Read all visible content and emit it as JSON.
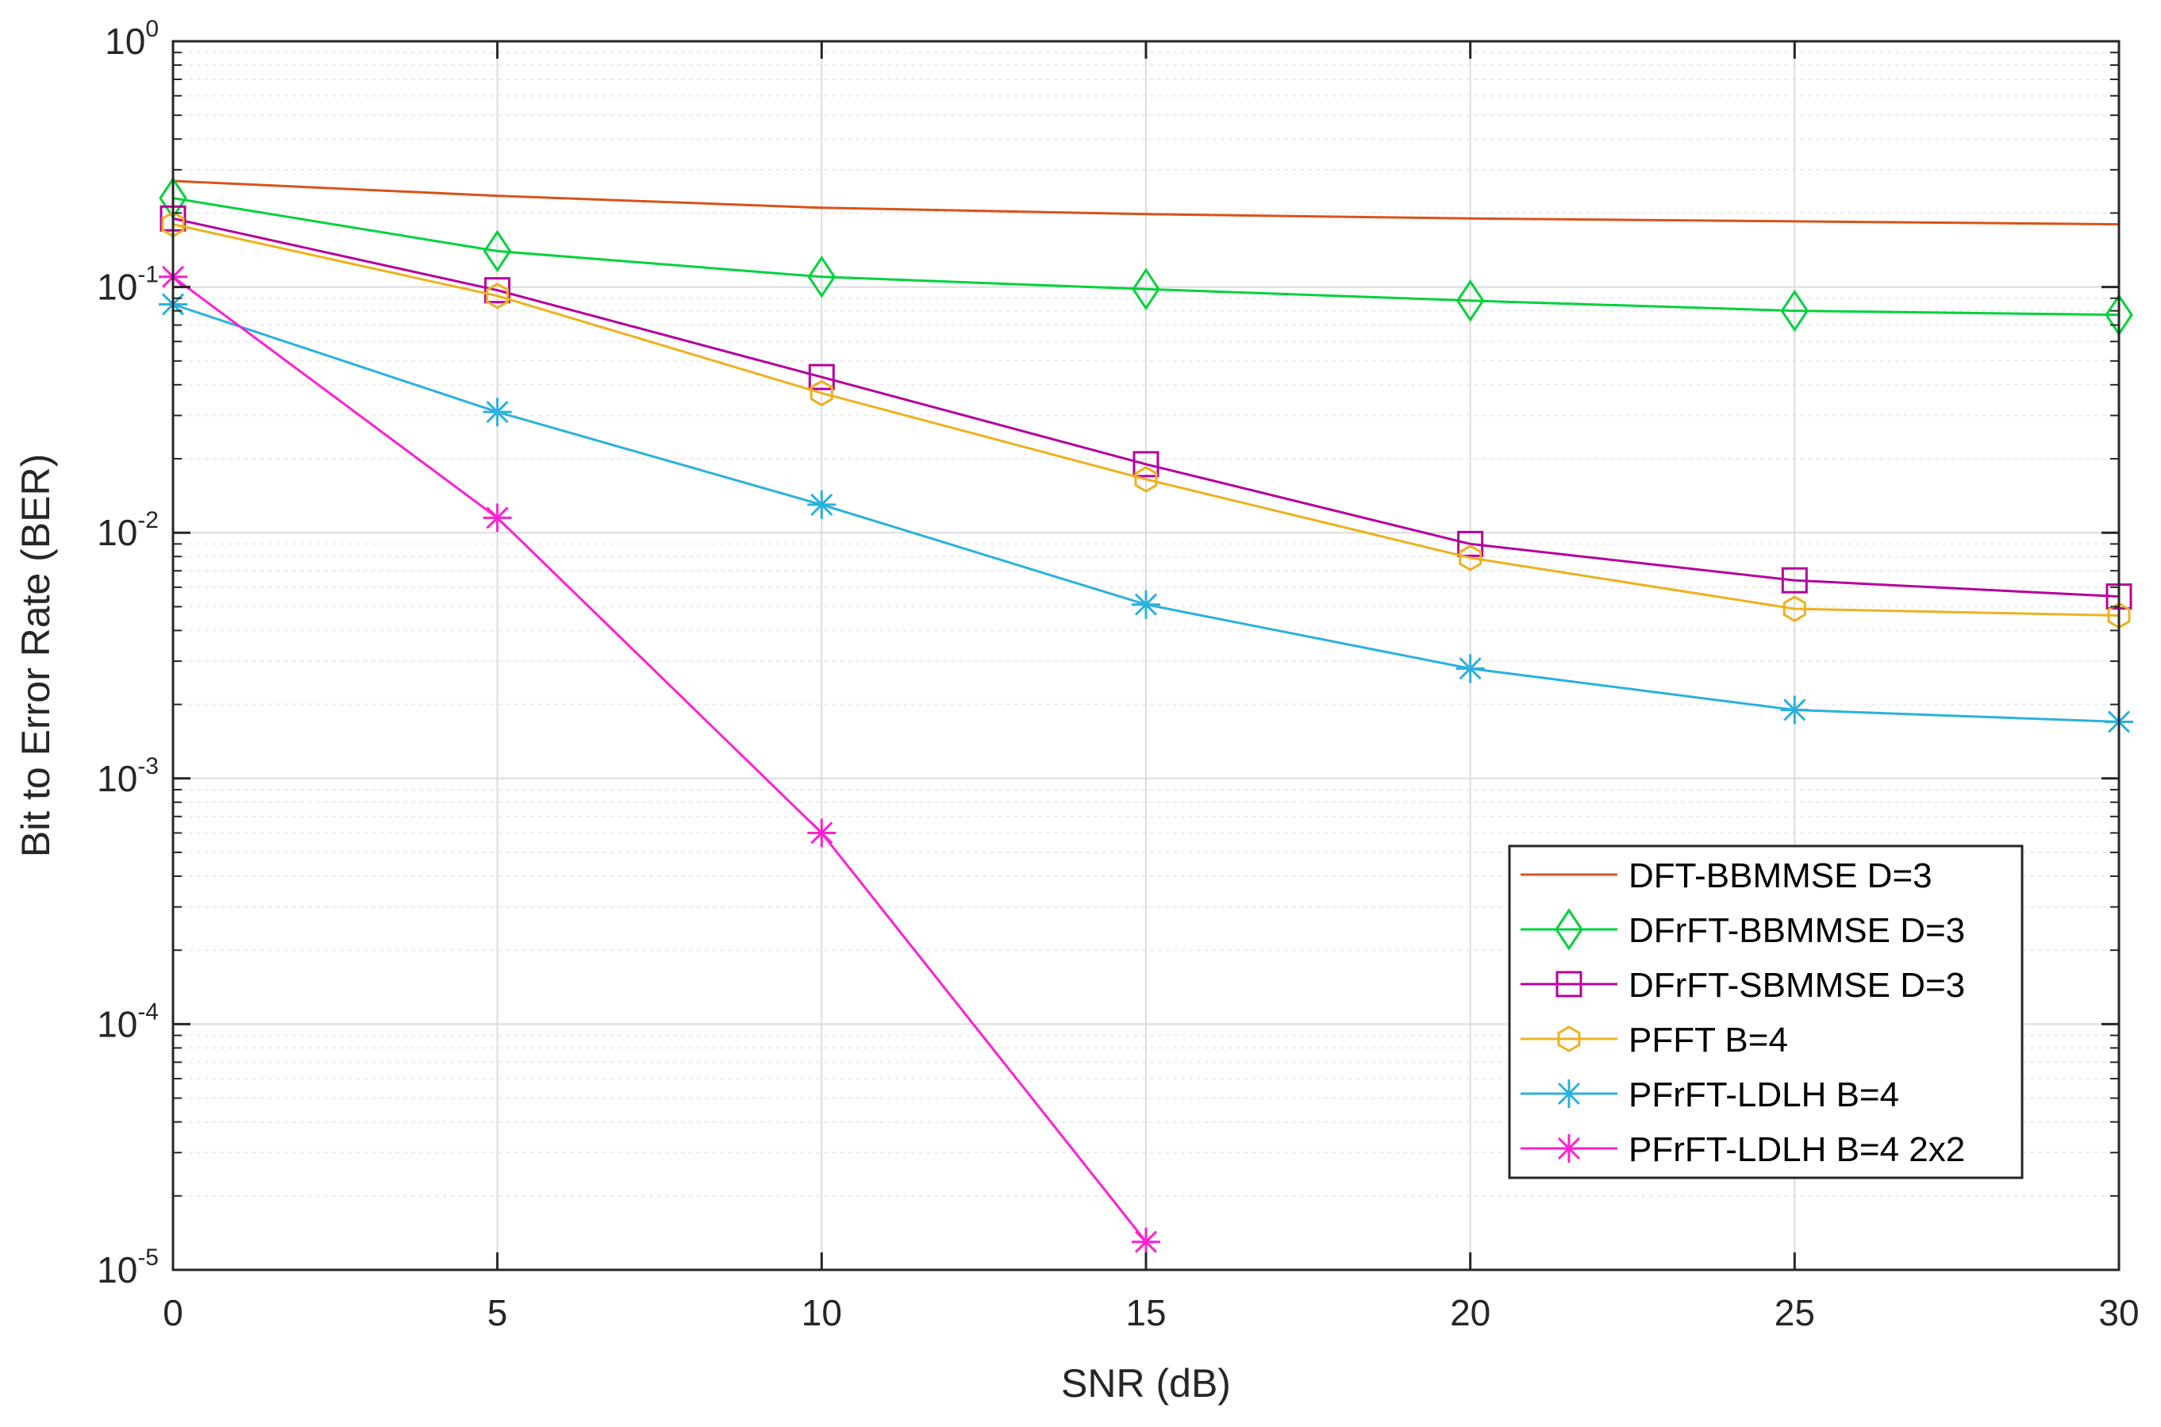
{
  "chart_data": {
    "type": "line",
    "title": "",
    "xlabel": "SNR (dB)",
    "ylabel": "Bit to Error Rate (BER)",
    "x": [
      0,
      5,
      10,
      15,
      20,
      25,
      30
    ],
    "xlim": [
      0,
      30
    ],
    "ylim": [
      1e-05,
      1
    ],
    "yscale": "log",
    "grid": true,
    "x_ticks": [
      {
        "value": 0,
        "label": "0"
      },
      {
        "value": 5,
        "label": "5"
      },
      {
        "value": 10,
        "label": "10"
      },
      {
        "value": 15,
        "label": "15"
      },
      {
        "value": 20,
        "label": "20"
      },
      {
        "value": 25,
        "label": "25"
      },
      {
        "value": 30,
        "label": "30"
      }
    ],
    "y_ticks": [
      {
        "value": 1,
        "base": "10",
        "exp": "0"
      },
      {
        "value": 0.1,
        "base": "10",
        "exp": "-1"
      },
      {
        "value": 0.01,
        "base": "10",
        "exp": "-2"
      },
      {
        "value": 0.001,
        "base": "10",
        "exp": "-3"
      },
      {
        "value": 0.0001,
        "base": "10",
        "exp": "-4"
      },
      {
        "value": 1e-05,
        "base": "10",
        "exp": "-5"
      }
    ],
    "legend_position": "bottom-right",
    "series": [
      {
        "name": "DFT-BBMMSE D=3",
        "color": "#d95319",
        "marker": "none",
        "x": [
          0,
          5,
          10,
          15,
          20,
          25,
          30
        ],
        "values": [
          0.27,
          0.235,
          0.21,
          0.198,
          0.19,
          0.185,
          0.18
        ]
      },
      {
        "name": "DFrFT-BBMMSE D=3",
        "color": "#00d23c",
        "marker": "diamond",
        "x": [
          0,
          5,
          10,
          15,
          20,
          25,
          30
        ],
        "values": [
          0.23,
          0.14,
          0.11,
          0.098,
          0.088,
          0.08,
          0.077
        ]
      },
      {
        "name": "DFrFT-SBMMSE D=3",
        "color": "#b4009e",
        "marker": "square",
        "x": [
          0,
          5,
          10,
          15,
          20,
          25,
          30
        ],
        "values": [
          0.19,
          0.097,
          0.043,
          0.019,
          0.009,
          0.0064,
          0.0055
        ]
      },
      {
        "name": "PFFT B=4",
        "color": "#edb120",
        "marker": "hexagon",
        "x": [
          0,
          5,
          10,
          15,
          20,
          25,
          30
        ],
        "values": [
          0.18,
          0.092,
          0.037,
          0.0165,
          0.0079,
          0.0049,
          0.0046
        ]
      },
      {
        "name": "PFrFT-LDLH B=4",
        "color": "#2ab1de",
        "marker": "asterisk",
        "x": [
          0,
          5,
          10,
          15,
          20,
          25,
          30
        ],
        "values": [
          0.085,
          0.031,
          0.013,
          0.0051,
          0.0028,
          0.0019,
          0.0017
        ]
      },
      {
        "name": "PFrFT-LDLH B=4 2x2",
        "color": "#ff1fd0",
        "marker": "asterisk",
        "x": [
          0,
          5,
          10,
          15
        ],
        "values": [
          0.11,
          0.0115,
          0.0006,
          1.3e-05
        ]
      }
    ]
  }
}
